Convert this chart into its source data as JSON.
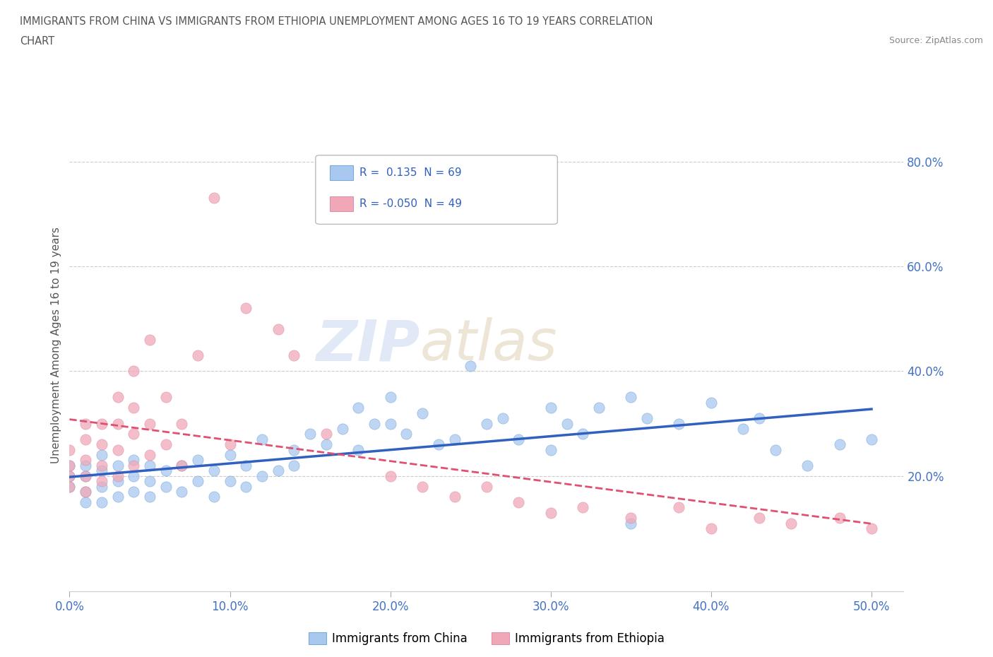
{
  "title_line1": "IMMIGRANTS FROM CHINA VS IMMIGRANTS FROM ETHIOPIA UNEMPLOYMENT AMONG AGES 16 TO 19 YEARS CORRELATION",
  "title_line2": "CHART",
  "source_text": "Source: ZipAtlas.com",
  "ylabel": "Unemployment Among Ages 16 to 19 years",
  "xlim": [
    0.0,
    0.52
  ],
  "ylim": [
    -0.02,
    0.92
  ],
  "xticks": [
    0.0,
    0.1,
    0.2,
    0.3,
    0.4,
    0.5
  ],
  "xticklabels": [
    "0.0%",
    "10.0%",
    "20.0%",
    "30.0%",
    "40.0%",
    "50.0%"
  ],
  "yticks": [
    0.2,
    0.4,
    0.6,
    0.8
  ],
  "yticklabels": [
    "20.0%",
    "40.0%",
    "60.0%",
    "80.0%"
  ],
  "china_color": "#a8c8f0",
  "ethiopia_color": "#f0a8b8",
  "china_edge_color": "#7aaad8",
  "ethiopia_edge_color": "#e090a8",
  "china_line_color": "#3060c0",
  "ethiopia_line_color": "#e05070",
  "R_china": 0.135,
  "N_china": 69,
  "R_ethiopia": -0.05,
  "N_ethiopia": 49,
  "legend_label_china": "Immigrants from China",
  "legend_label_ethiopia": "Immigrants from Ethiopia",
  "watermark_zip": "ZIP",
  "watermark_atlas": "atlas",
  "background_color": "#ffffff",
  "grid_color": "#cccccc",
  "title_color": "#555555",
  "tick_color": "#4472c4",
  "china_scatter": {
    "x": [
      0.0,
      0.0,
      0.0,
      0.01,
      0.01,
      0.01,
      0.01,
      0.02,
      0.02,
      0.02,
      0.02,
      0.03,
      0.03,
      0.03,
      0.04,
      0.04,
      0.04,
      0.05,
      0.05,
      0.05,
      0.06,
      0.06,
      0.07,
      0.07,
      0.08,
      0.08,
      0.09,
      0.09,
      0.1,
      0.1,
      0.11,
      0.11,
      0.12,
      0.12,
      0.13,
      0.14,
      0.14,
      0.15,
      0.16,
      0.17,
      0.18,
      0.18,
      0.19,
      0.2,
      0.2,
      0.21,
      0.22,
      0.23,
      0.24,
      0.25,
      0.26,
      0.27,
      0.28,
      0.3,
      0.3,
      0.31,
      0.32,
      0.33,
      0.35,
      0.35,
      0.36,
      0.38,
      0.4,
      0.42,
      0.43,
      0.44,
      0.46,
      0.48,
      0.5
    ],
    "y": [
      0.18,
      0.2,
      0.22,
      0.15,
      0.17,
      0.2,
      0.22,
      0.15,
      0.18,
      0.21,
      0.24,
      0.16,
      0.19,
      0.22,
      0.17,
      0.2,
      0.23,
      0.16,
      0.19,
      0.22,
      0.18,
      0.21,
      0.17,
      0.22,
      0.19,
      0.23,
      0.16,
      0.21,
      0.19,
      0.24,
      0.18,
      0.22,
      0.2,
      0.27,
      0.21,
      0.22,
      0.25,
      0.28,
      0.26,
      0.29,
      0.25,
      0.33,
      0.3,
      0.3,
      0.35,
      0.28,
      0.32,
      0.26,
      0.27,
      0.41,
      0.3,
      0.31,
      0.27,
      0.33,
      0.25,
      0.3,
      0.28,
      0.33,
      0.11,
      0.35,
      0.31,
      0.3,
      0.34,
      0.29,
      0.31,
      0.25,
      0.22,
      0.26,
      0.27
    ]
  },
  "ethiopia_scatter": {
    "x": [
      0.0,
      0.0,
      0.0,
      0.0,
      0.01,
      0.01,
      0.01,
      0.01,
      0.01,
      0.02,
      0.02,
      0.02,
      0.02,
      0.03,
      0.03,
      0.03,
      0.03,
      0.04,
      0.04,
      0.04,
      0.04,
      0.05,
      0.05,
      0.05,
      0.06,
      0.06,
      0.07,
      0.07,
      0.08,
      0.09,
      0.1,
      0.11,
      0.13,
      0.14,
      0.16,
      0.2,
      0.22,
      0.24,
      0.26,
      0.28,
      0.3,
      0.32,
      0.35,
      0.38,
      0.4,
      0.43,
      0.45,
      0.48,
      0.5
    ],
    "y": [
      0.18,
      0.2,
      0.22,
      0.25,
      0.17,
      0.2,
      0.23,
      0.27,
      0.3,
      0.19,
      0.22,
      0.26,
      0.3,
      0.2,
      0.25,
      0.3,
      0.35,
      0.22,
      0.28,
      0.33,
      0.4,
      0.24,
      0.3,
      0.46,
      0.26,
      0.35,
      0.22,
      0.3,
      0.43,
      0.73,
      0.26,
      0.52,
      0.48,
      0.43,
      0.28,
      0.2,
      0.18,
      0.16,
      0.18,
      0.15,
      0.13,
      0.14,
      0.12,
      0.14,
      0.1,
      0.12,
      0.11,
      0.12,
      0.1
    ]
  }
}
